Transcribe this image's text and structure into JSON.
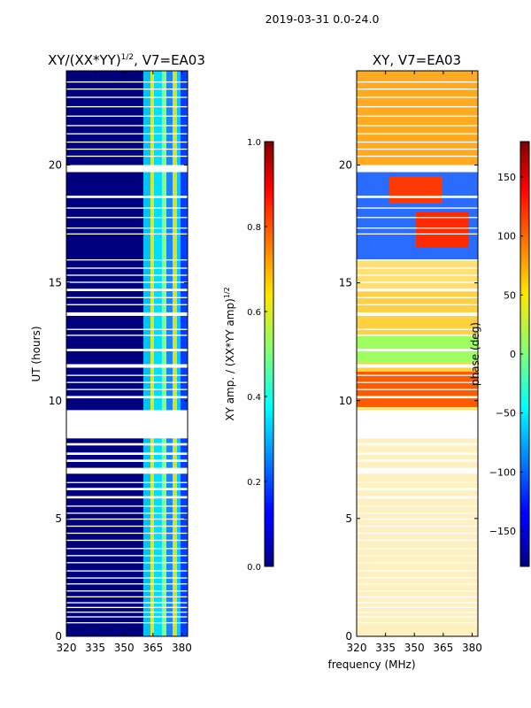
{
  "suptitle": "2019-03-31 0.0-24.0",
  "chart_data": [
    {
      "type": "heatmap",
      "title": "XY/(XX*YY)",
      "title_sup": "1/2",
      "title_suffix": ", V7=EA03",
      "xlabel": "",
      "ylabel": "UT (hours)",
      "xlim": [
        320,
        383
      ],
      "ylim": [
        0,
        24
      ],
      "xticks": [
        320,
        335,
        350,
        365,
        380
      ],
      "yticks": [
        0,
        5,
        10,
        15,
        20
      ],
      "colorbar": {
        "label": "XY amp. / (XX*YY amp)",
        "label_sup": "1/2",
        "range": [
          0.0,
          1.0
        ],
        "ticks": [
          "0.0",
          "0.2",
          "0.4",
          "0.6",
          "0.8",
          "1.0"
        ],
        "colormap": "jet"
      },
      "gap_hours": [
        [
          0.55,
          0.6
        ],
        [
          0.8,
          0.85
        ],
        [
          1.0,
          1.05
        ],
        [
          1.2,
          1.25
        ],
        [
          1.4,
          1.45
        ],
        [
          1.65,
          1.7
        ],
        [
          1.9,
          1.95
        ],
        [
          2.2,
          2.25
        ],
        [
          2.45,
          2.5
        ],
        [
          2.75,
          2.8
        ],
        [
          3.1,
          3.15
        ],
        [
          3.4,
          3.45
        ],
        [
          3.7,
          3.75
        ],
        [
          4.05,
          4.1
        ],
        [
          4.35,
          4.4
        ],
        [
          4.65,
          4.7
        ],
        [
          4.95,
          5.0
        ],
        [
          5.2,
          5.25
        ],
        [
          5.5,
          5.55
        ],
        [
          5.85,
          5.95
        ],
        [
          6.2,
          6.3
        ],
        [
          6.5,
          6.55
        ],
        [
          6.9,
          7.15
        ],
        [
          7.4,
          7.5
        ],
        [
          7.7,
          7.8
        ],
        [
          8.1,
          8.2
        ],
        [
          8.4,
          9.6
        ],
        [
          10.1,
          10.2
        ],
        [
          10.45,
          10.5
        ],
        [
          10.75,
          10.8
        ],
        [
          11.05,
          11.1
        ],
        [
          11.4,
          11.55
        ],
        [
          12.1,
          12.2
        ],
        [
          12.75,
          12.8
        ],
        [
          13.0,
          13.05
        ],
        [
          13.6,
          13.75
        ],
        [
          14.05,
          14.1
        ],
        [
          14.35,
          14.4
        ],
        [
          14.65,
          14.75
        ],
        [
          15.0,
          15.05
        ],
        [
          15.3,
          15.35
        ],
        [
          15.6,
          15.65
        ],
        [
          15.95,
          16.0
        ],
        [
          17.05,
          17.1
        ],
        [
          17.3,
          17.35
        ],
        [
          17.75,
          17.8
        ],
        [
          18.15,
          18.2
        ],
        [
          18.6,
          18.7
        ],
        [
          19.7,
          20.0
        ],
        [
          20.35,
          20.4
        ],
        [
          20.65,
          20.7
        ],
        [
          20.95,
          21.0
        ],
        [
          21.3,
          21.35
        ],
        [
          21.65,
          21.7
        ],
        [
          22.05,
          22.1
        ],
        [
          22.45,
          22.5
        ],
        [
          22.85,
          22.9
        ],
        [
          23.2,
          23.25
        ],
        [
          23.5,
          23.55
        ]
      ]
    },
    {
      "type": "heatmap",
      "title": "XY, V7=EA03",
      "xlabel": "frequency (MHz)",
      "ylabel": "",
      "xlim": [
        320,
        383
      ],
      "ylim": [
        0,
        24
      ],
      "xticks": [
        320,
        335,
        350,
        365,
        380
      ],
      "yticks": [
        0,
        5,
        10,
        15,
        20
      ],
      "colorbar": {
        "label": "phase (deg)",
        "range": [
          -180,
          180
        ],
        "ticks": [
          "−150",
          "−100",
          "−50",
          "0",
          "50",
          "100",
          "150"
        ],
        "tick_values": [
          -150,
          -100,
          -50,
          0,
          50,
          100,
          150
        ],
        "colormap": "jet"
      },
      "gap_hours": [
        [
          0.55,
          0.6
        ],
        [
          0.8,
          0.85
        ],
        [
          1.0,
          1.05
        ],
        [
          1.2,
          1.25
        ],
        [
          1.4,
          1.45
        ],
        [
          1.65,
          1.7
        ],
        [
          1.9,
          1.95
        ],
        [
          2.2,
          2.25
        ],
        [
          2.45,
          2.5
        ],
        [
          2.75,
          2.8
        ],
        [
          3.1,
          3.15
        ],
        [
          3.4,
          3.45
        ],
        [
          3.7,
          3.75
        ],
        [
          4.05,
          4.1
        ],
        [
          4.35,
          4.4
        ],
        [
          4.65,
          4.7
        ],
        [
          4.95,
          5.0
        ],
        [
          5.2,
          5.25
        ],
        [
          5.5,
          5.55
        ],
        [
          5.85,
          5.95
        ],
        [
          6.2,
          6.3
        ],
        [
          6.5,
          6.55
        ],
        [
          6.9,
          7.15
        ],
        [
          7.4,
          7.5
        ],
        [
          7.7,
          7.8
        ],
        [
          8.1,
          8.2
        ],
        [
          8.4,
          9.6
        ],
        [
          10.1,
          10.2
        ],
        [
          10.45,
          10.5
        ],
        [
          10.75,
          10.8
        ],
        [
          11.05,
          11.1
        ],
        [
          11.4,
          11.55
        ],
        [
          12.1,
          12.2
        ],
        [
          12.75,
          12.8
        ],
        [
          13.0,
          13.05
        ],
        [
          13.6,
          13.75
        ],
        [
          14.05,
          14.1
        ],
        [
          14.35,
          14.4
        ],
        [
          14.65,
          14.75
        ],
        [
          15.0,
          15.05
        ],
        [
          15.3,
          15.35
        ],
        [
          15.6,
          15.65
        ],
        [
          15.95,
          16.0
        ],
        [
          17.05,
          17.1
        ],
        [
          17.3,
          17.35
        ],
        [
          17.75,
          17.8
        ],
        [
          18.15,
          18.2
        ],
        [
          18.6,
          18.7
        ],
        [
          19.7,
          20.0
        ],
        [
          20.35,
          20.4
        ],
        [
          20.65,
          20.7
        ],
        [
          20.95,
          21.0
        ],
        [
          21.3,
          21.35
        ],
        [
          21.65,
          21.7
        ],
        [
          22.05,
          22.1
        ],
        [
          22.45,
          22.5
        ],
        [
          22.85,
          22.9
        ],
        [
          23.2,
          23.25
        ],
        [
          23.5,
          23.55
        ]
      ]
    }
  ]
}
